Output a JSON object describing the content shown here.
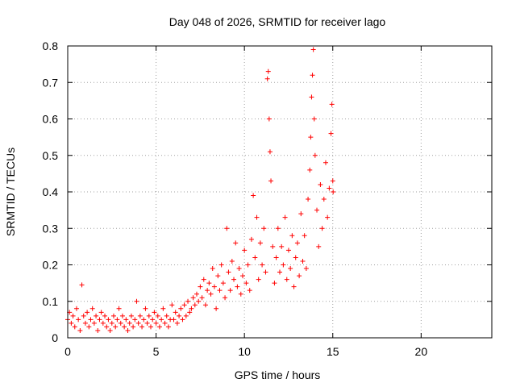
{
  "chart_data": {
    "type": "scatter",
    "title": "Day 048 of 2026, SRMTID for receiver lago",
    "xlabel": "GPS time / hours",
    "ylabel": "SRMTID / TECUs",
    "xlim": [
      0,
      24
    ],
    "ylim": [
      0,
      0.8
    ],
    "x_ticks": [
      0,
      5,
      10,
      15,
      20
    ],
    "x_tick_labels": [
      "0",
      "5",
      "10",
      "15",
      "20"
    ],
    "y_ticks": [
      0,
      0.1,
      0.2,
      0.3,
      0.4,
      0.5,
      0.6,
      0.7,
      0.8
    ],
    "y_tick_labels": [
      "0",
      "0.1",
      "0.2",
      "0.3",
      "0.4",
      "0.5",
      "0.6",
      "0.7",
      "0.8"
    ],
    "grid": true,
    "marker": "+",
    "marker_color": "#ff0000",
    "series": [
      {
        "name": "SRMTID",
        "points": [
          [
            0.0,
            0.05
          ],
          [
            0.1,
            0.07
          ],
          [
            0.2,
            0.04
          ],
          [
            0.3,
            0.06
          ],
          [
            0.4,
            0.03
          ],
          [
            0.5,
            0.08
          ],
          [
            0.6,
            0.05
          ],
          [
            0.7,
            0.02
          ],
          [
            0.8,
            0.145
          ],
          [
            0.9,
            0.06
          ],
          [
            1.0,
            0.04
          ],
          [
            1.1,
            0.07
          ],
          [
            1.2,
            0.03
          ],
          [
            1.3,
            0.05
          ],
          [
            1.4,
            0.08
          ],
          [
            1.5,
            0.04
          ],
          [
            1.6,
            0.06
          ],
          [
            1.7,
            0.02
          ],
          [
            1.8,
            0.05
          ],
          [
            1.9,
            0.07
          ],
          [
            2.0,
            0.04
          ],
          [
            2.1,
            0.06
          ],
          [
            2.2,
            0.03
          ],
          [
            2.3,
            0.05
          ],
          [
            2.4,
            0.02
          ],
          [
            2.5,
            0.04
          ],
          [
            2.6,
            0.06
          ],
          [
            2.7,
            0.03
          ],
          [
            2.8,
            0.05
          ],
          [
            2.9,
            0.08
          ],
          [
            3.0,
            0.04
          ],
          [
            3.1,
            0.06
          ],
          [
            3.2,
            0.03
          ],
          [
            3.3,
            0.05
          ],
          [
            3.4,
            0.02
          ],
          [
            3.5,
            0.04
          ],
          [
            3.6,
            0.06
          ],
          [
            3.7,
            0.03
          ],
          [
            3.8,
            0.05
          ],
          [
            3.9,
            0.1
          ],
          [
            4.0,
            0.04
          ],
          [
            4.1,
            0.06
          ],
          [
            4.2,
            0.03
          ],
          [
            4.3,
            0.05
          ],
          [
            4.4,
            0.08
          ],
          [
            4.5,
            0.04
          ],
          [
            4.6,
            0.06
          ],
          [
            4.7,
            0.03
          ],
          [
            4.8,
            0.05
          ],
          [
            4.9,
            0.07
          ],
          [
            5.0,
            0.04
          ],
          [
            5.1,
            0.06
          ],
          [
            5.2,
            0.03
          ],
          [
            5.3,
            0.05
          ],
          [
            5.4,
            0.08
          ],
          [
            5.5,
            0.04
          ],
          [
            5.6,
            0.06
          ],
          [
            5.7,
            0.03
          ],
          [
            5.8,
            0.05
          ],
          [
            5.9,
            0.09
          ],
          [
            6.0,
            0.05
          ],
          [
            6.1,
            0.07
          ],
          [
            6.2,
            0.04
          ],
          [
            6.3,
            0.06
          ],
          [
            6.4,
            0.08
          ],
          [
            6.5,
            0.05
          ],
          [
            6.6,
            0.09
          ],
          [
            6.7,
            0.06
          ],
          [
            6.8,
            0.1
          ],
          [
            6.9,
            0.07
          ],
          [
            7.0,
            0.08
          ],
          [
            7.1,
            0.11
          ],
          [
            7.2,
            0.09
          ],
          [
            7.3,
            0.12
          ],
          [
            7.4,
            0.1
          ],
          [
            7.5,
            0.14
          ],
          [
            7.6,
            0.11
          ],
          [
            7.7,
            0.16
          ],
          [
            7.8,
            0.09
          ],
          [
            7.9,
            0.13
          ],
          [
            8.0,
            0.15
          ],
          [
            8.1,
            0.12
          ],
          [
            8.2,
            0.19
          ],
          [
            8.3,
            0.14
          ],
          [
            8.4,
            0.08
          ],
          [
            8.5,
            0.17
          ],
          [
            8.6,
            0.13
          ],
          [
            8.7,
            0.2
          ],
          [
            8.8,
            0.15
          ],
          [
            8.9,
            0.11
          ],
          [
            9.0,
            0.3
          ],
          [
            9.1,
            0.18
          ],
          [
            9.2,
            0.13
          ],
          [
            9.3,
            0.21
          ],
          [
            9.4,
            0.16
          ],
          [
            9.5,
            0.26
          ],
          [
            9.6,
            0.14
          ],
          [
            9.7,
            0.19
          ],
          [
            9.8,
            0.12
          ],
          [
            9.9,
            0.17
          ],
          [
            10.0,
            0.24
          ],
          [
            10.1,
            0.15
          ],
          [
            10.2,
            0.2
          ],
          [
            10.3,
            0.13
          ],
          [
            10.4,
            0.27
          ],
          [
            10.5,
            0.39
          ],
          [
            10.6,
            0.22
          ],
          [
            10.7,
            0.33
          ],
          [
            10.8,
            0.16
          ],
          [
            10.9,
            0.26
          ],
          [
            11.0,
            0.2
          ],
          [
            11.1,
            0.3
          ],
          [
            11.2,
            0.18
          ],
          [
            11.3,
            0.71
          ],
          [
            11.35,
            0.73
          ],
          [
            11.4,
            0.6
          ],
          [
            11.45,
            0.51
          ],
          [
            11.5,
            0.43
          ],
          [
            11.6,
            0.25
          ],
          [
            11.7,
            0.15
          ],
          [
            11.8,
            0.22
          ],
          [
            11.9,
            0.3
          ],
          [
            12.0,
            0.18
          ],
          [
            12.1,
            0.25
          ],
          [
            12.2,
            0.2
          ],
          [
            12.3,
            0.33
          ],
          [
            12.4,
            0.16
          ],
          [
            12.5,
            0.24
          ],
          [
            12.6,
            0.19
          ],
          [
            12.7,
            0.28
          ],
          [
            12.8,
            0.14
          ],
          [
            12.9,
            0.22
          ],
          [
            13.0,
            0.26
          ],
          [
            13.1,
            0.17
          ],
          [
            13.2,
            0.34
          ],
          [
            13.3,
            0.21
          ],
          [
            13.4,
            0.28
          ],
          [
            13.5,
            0.19
          ],
          [
            13.6,
            0.38
          ],
          [
            13.7,
            0.46
          ],
          [
            13.75,
            0.55
          ],
          [
            13.8,
            0.66
          ],
          [
            13.85,
            0.72
          ],
          [
            13.9,
            0.79
          ],
          [
            13.95,
            0.6
          ],
          [
            14.0,
            0.5
          ],
          [
            14.1,
            0.35
          ],
          [
            14.2,
            0.25
          ],
          [
            14.3,
            0.42
          ],
          [
            14.4,
            0.3
          ],
          [
            14.5,
            0.38
          ],
          [
            14.6,
            0.48
          ],
          [
            14.7,
            0.33
          ],
          [
            14.8,
            0.41
          ],
          [
            14.9,
            0.56
          ],
          [
            14.95,
            0.64
          ],
          [
            15.0,
            0.43
          ],
          [
            15.02,
            0.4
          ]
        ]
      }
    ]
  }
}
